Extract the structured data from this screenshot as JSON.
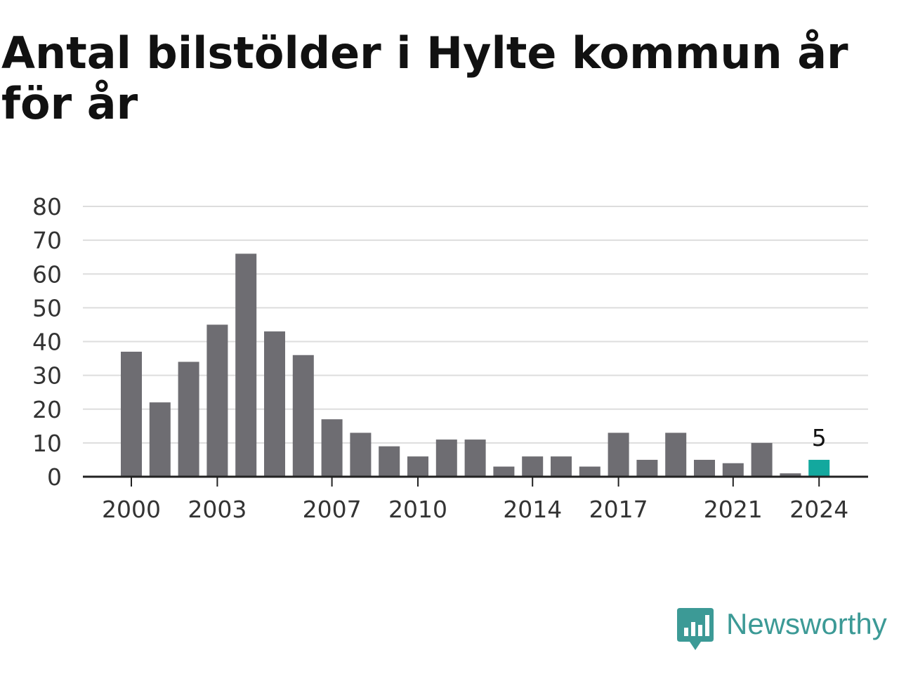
{
  "chart_data": {
    "type": "bar",
    "title": "Antal bilstölder i Hylte kommun år för år",
    "categories": [
      "2000",
      "2001",
      "2002",
      "2003",
      "2004",
      "2005",
      "2006",
      "2007",
      "2008",
      "2009",
      "2010",
      "2011",
      "2012",
      "2013",
      "2014",
      "2015",
      "2016",
      "2017",
      "2018",
      "2019",
      "2020",
      "2021",
      "2022",
      "2023",
      "2024"
    ],
    "values": [
      37,
      22,
      34,
      45,
      66,
      43,
      36,
      17,
      13,
      9,
      6,
      11,
      11,
      3,
      6,
      6,
      3,
      13,
      5,
      13,
      5,
      4,
      10,
      1,
      5
    ],
    "x_tick_labels": [
      "2000",
      "2003",
      "2007",
      "2010",
      "2014",
      "2017",
      "2021",
      "2024"
    ],
    "y_ticks": [
      0,
      10,
      20,
      30,
      40,
      50,
      60,
      70,
      80
    ],
    "ylim": [
      0,
      80
    ],
    "grid": true,
    "highlight": {
      "category": "2024",
      "label": "5"
    },
    "colors": {
      "bar": "#6e6d72",
      "highlight": "#13a89e",
      "grid": "#dddddd",
      "axis": "#222222",
      "text": "#333333"
    }
  },
  "brand": {
    "name": "Newsworthy",
    "color": "#3c9a96"
  }
}
